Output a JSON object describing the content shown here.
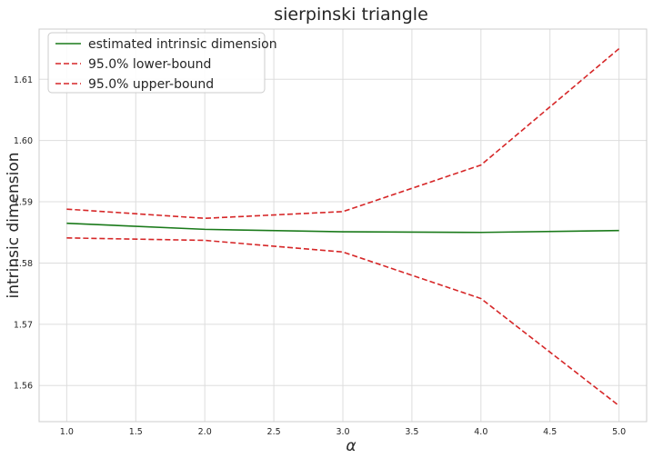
{
  "chart_data": {
    "type": "line",
    "title": "sierpinski triangle",
    "xlabel": "α",
    "ylabel": "intrinsic dimension",
    "x": [
      1.0,
      2.0,
      3.0,
      4.0,
      5.0
    ],
    "xlim": [
      0.8,
      5.2
    ],
    "ylim": [
      1.5541,
      1.6182
    ],
    "xticks": [
      1.0,
      1.5,
      2.0,
      2.5,
      3.0,
      3.5,
      4.0,
      4.5,
      5.0
    ],
    "xtick_labels": [
      "1.0",
      "1.5",
      "2.0",
      "2.5",
      "3.0",
      "3.5",
      "4.0",
      "4.5",
      "5.0"
    ],
    "yticks": [
      1.56,
      1.57,
      1.58,
      1.59,
      1.6,
      1.61
    ],
    "ytick_labels": [
      "1.56",
      "1.57",
      "1.58",
      "1.59",
      "1.60",
      "1.61"
    ],
    "grid": true,
    "legend_position": "top-left",
    "series": [
      {
        "name": "estimated intrinsic dimension",
        "values": [
          1.5865,
          1.5855,
          1.5851,
          1.585,
          1.5853
        ],
        "color": "#1a7a1a",
        "style": "solid"
      },
      {
        "name": "95.0% lower-bound",
        "values": [
          1.5841,
          1.5837,
          1.5818,
          1.5742,
          1.5567
        ],
        "color": "#d62728",
        "style": "dashed"
      },
      {
        "name": "95.0% upper-bound",
        "values": [
          1.5888,
          1.5873,
          1.5884,
          1.596,
          1.615
        ],
        "color": "#d62728",
        "style": "dashed"
      }
    ]
  }
}
